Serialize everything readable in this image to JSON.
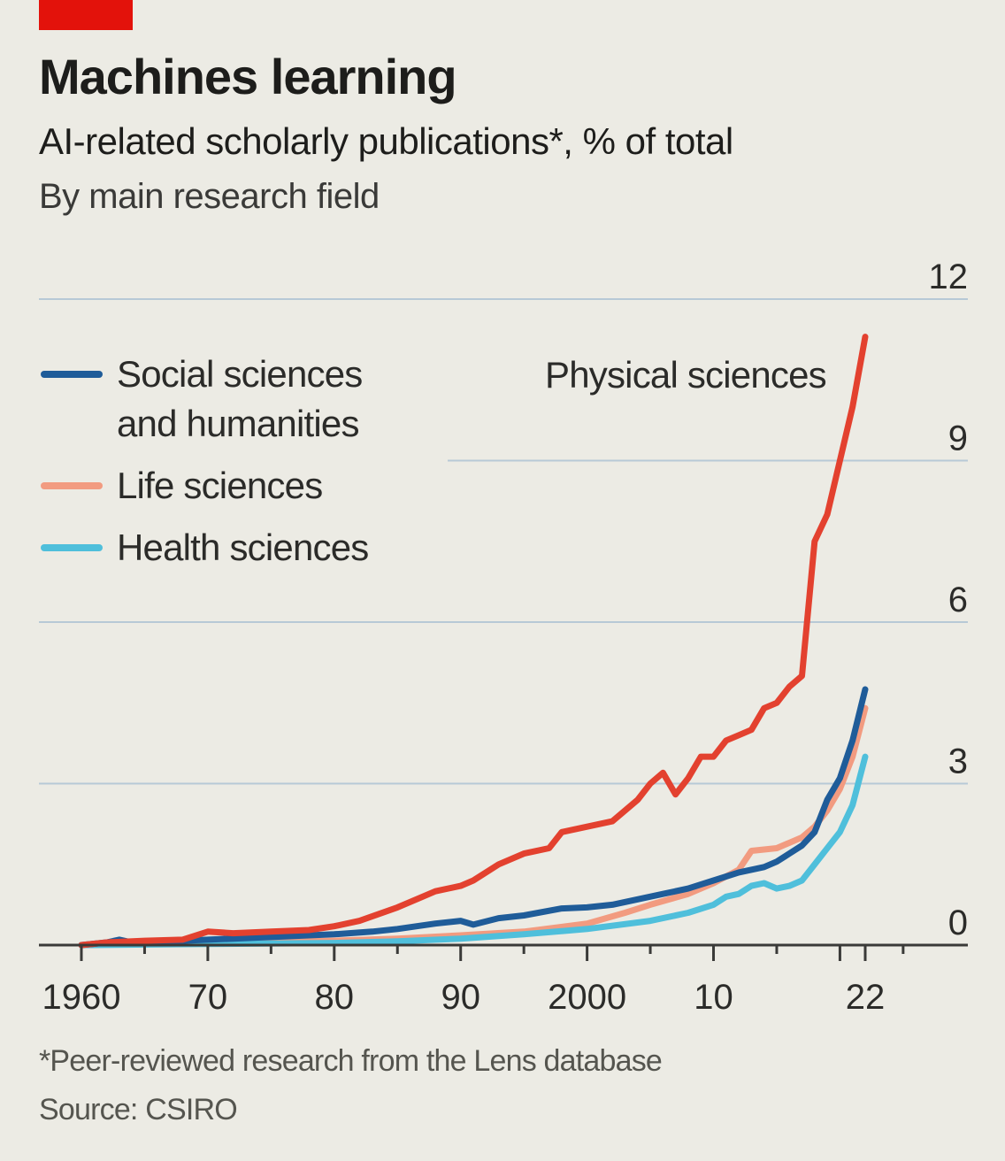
{
  "header": {
    "title": "Machines learning",
    "subtitle": "AI-related scholarly publications*, % of total",
    "subsubtitle": "By main research field"
  },
  "footer": {
    "footnote": "*Peer-reviewed research from the Lens database",
    "source": "Source: CSIRO"
  },
  "colors": {
    "background": "#ecebe4",
    "brand_red": "#e3120b",
    "grid": "#b7c9d6"
  },
  "chart_data": {
    "type": "line",
    "title": "Machines learning",
    "ylabel": "",
    "xlabel": "",
    "ylim": [
      0,
      12
    ],
    "xlim": [
      1957,
      2030
    ],
    "y_ticks": [
      0,
      3,
      6,
      9,
      12
    ],
    "y_tick_labels": [
      "0",
      "3",
      "6",
      "9",
      "12"
    ],
    "x_ticks": [
      1960,
      1970,
      1980,
      1990,
      2000,
      2010,
      2022
    ],
    "x_tick_labels": [
      "1960",
      "70",
      "80",
      "90",
      "2000",
      "10",
      "22"
    ],
    "y_axis_side": "right",
    "grid": true,
    "legend_position": "top-left",
    "series": [
      {
        "name": "Social sciences and humanities",
        "color": "#1f5c99",
        "x": [
          1960,
          1962,
          1963,
          1964,
          1966,
          1968,
          1970,
          1972,
          1975,
          1978,
          1980,
          1983,
          1985,
          1988,
          1990,
          1991,
          1993,
          1995,
          1998,
          2000,
          2002,
          2004,
          2006,
          2008,
          2010,
          2012,
          2014,
          2015,
          2016,
          2017,
          2018,
          2019,
          2020,
          2021,
          2022
        ],
        "values": [
          0.0,
          0.05,
          0.1,
          0.05,
          0.05,
          0.08,
          0.1,
          0.12,
          0.15,
          0.18,
          0.2,
          0.25,
          0.3,
          0.4,
          0.45,
          0.38,
          0.5,
          0.55,
          0.68,
          0.7,
          0.75,
          0.85,
          0.95,
          1.05,
          1.2,
          1.35,
          1.45,
          1.55,
          1.7,
          1.85,
          2.1,
          2.7,
          3.1,
          3.8,
          4.75
        ]
      },
      {
        "name": "Life sciences",
        "color": "#f29b80",
        "x": [
          1960,
          1965,
          1970,
          1975,
          1980,
          1985,
          1990,
          1995,
          2000,
          2003,
          2005,
          2008,
          2010,
          2012,
          2013,
          2015,
          2017,
          2018,
          2019,
          2020,
          2021,
          2022
        ],
        "values": [
          0.0,
          0.02,
          0.04,
          0.06,
          0.08,
          0.12,
          0.18,
          0.25,
          0.4,
          0.6,
          0.75,
          0.95,
          1.15,
          1.4,
          1.75,
          1.8,
          2.0,
          2.2,
          2.5,
          2.9,
          3.5,
          4.4
        ]
      },
      {
        "name": "Health sciences",
        "color": "#4fbfdb",
        "x": [
          1960,
          1970,
          1980,
          1985,
          1990,
          1995,
          2000,
          2005,
          2008,
          2010,
          2011,
          2012,
          2013,
          2014,
          2015,
          2016,
          2017,
          2018,
          2019,
          2020,
          2021,
          2022
        ],
        "values": [
          0.0,
          0.02,
          0.04,
          0.07,
          0.12,
          0.2,
          0.3,
          0.45,
          0.6,
          0.75,
          0.9,
          0.95,
          1.1,
          1.15,
          1.05,
          1.1,
          1.2,
          1.5,
          1.8,
          2.1,
          2.6,
          3.5
        ]
      },
      {
        "name": "Physical sciences",
        "color": "#e3412f",
        "x": [
          1960,
          1962,
          1965,
          1968,
          1970,
          1972,
          1975,
          1978,
          1980,
          1982,
          1985,
          1988,
          1990,
          1991,
          1993,
          1995,
          1997,
          1998,
          2000,
          2002,
          2003,
          2004,
          2005,
          2006,
          2007,
          2008,
          2009,
          2010,
          2011,
          2012,
          2013,
          2014,
          2015,
          2016,
          2017,
          2018,
          2019,
          2020,
          2021,
          2022
        ],
        "values": [
          0.0,
          0.05,
          0.08,
          0.1,
          0.25,
          0.22,
          0.25,
          0.28,
          0.35,
          0.45,
          0.7,
          1.0,
          1.1,
          1.2,
          1.5,
          1.7,
          1.8,
          2.1,
          2.2,
          2.3,
          2.5,
          2.7,
          3.0,
          3.2,
          2.8,
          3.1,
          3.5,
          3.5,
          3.8,
          3.9,
          4.0,
          4.4,
          4.5,
          4.8,
          5.0,
          7.5,
          8.0,
          9.0,
          10.0,
          11.3
        ]
      }
    ]
  },
  "legend": {
    "items": [
      {
        "label": "Social sciences",
        "label2": "and humanities",
        "color": "#1f5c99"
      },
      {
        "label": "Life sciences",
        "color": "#f29b80"
      },
      {
        "label": "Health sciences",
        "color": "#4fbfdb"
      }
    ],
    "direct_label": "Physical sciences"
  }
}
